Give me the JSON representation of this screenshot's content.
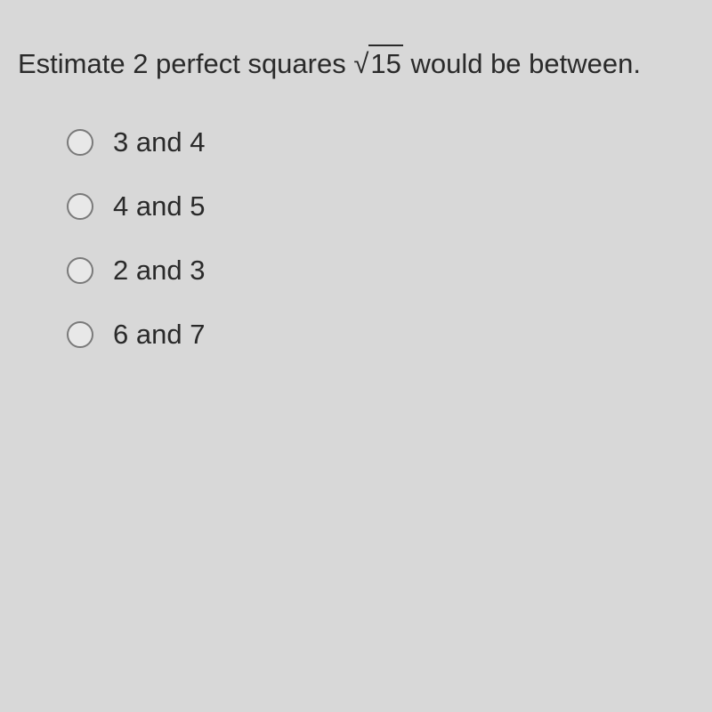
{
  "question": {
    "prefix": "Estimate 2 perfect squares ",
    "radicand": "15",
    "suffix": " would be between."
  },
  "options": [
    {
      "label": "3 and 4"
    },
    {
      "label": "4 and 5"
    },
    {
      "label": "2 and 3"
    },
    {
      "label": "6 and 7"
    }
  ],
  "colors": {
    "background": "#d8d8d8",
    "text": "#2a2a2a",
    "radio_border": "#7a7a7a"
  },
  "typography": {
    "question_fontsize": 31,
    "option_fontsize": 31
  }
}
